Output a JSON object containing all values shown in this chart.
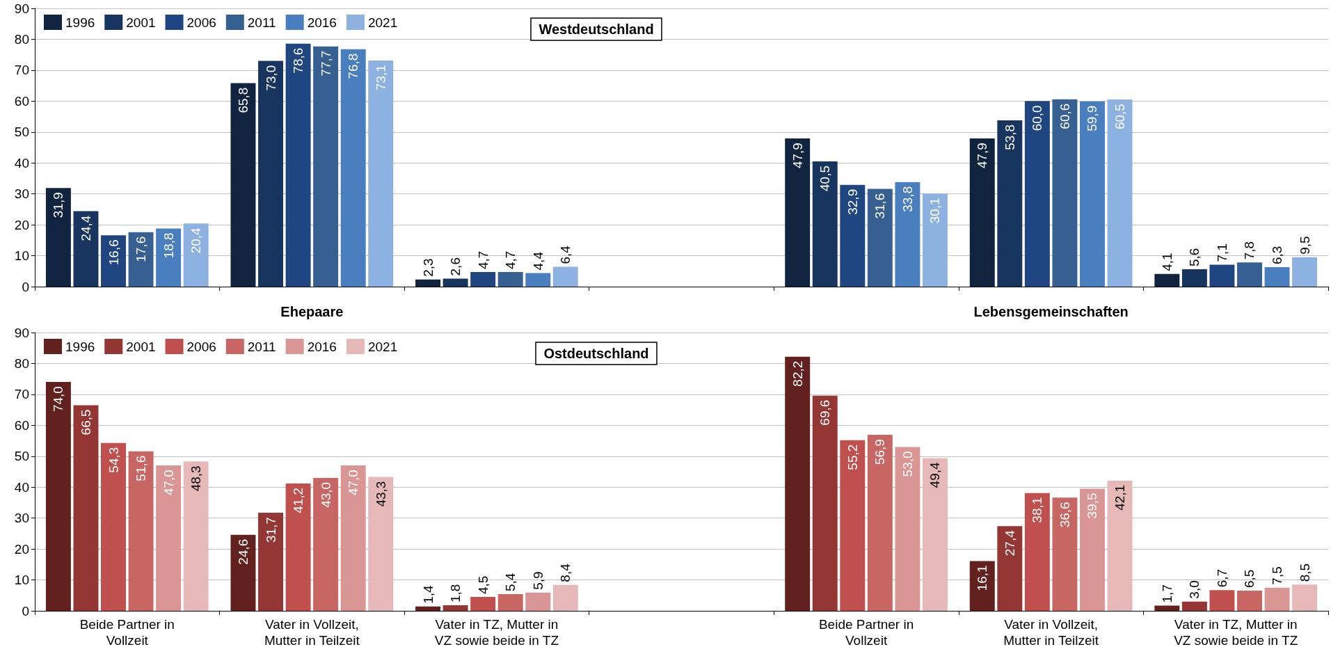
{
  "chart_data": [
    {
      "type": "bar",
      "title": "Westdeutschland",
      "categories": [
        null,
        null,
        null,
        null,
        null,
        null,
        null
      ],
      "series": [
        {
          "name": "1996",
          "color": "#10233f",
          "values": [
            31.9,
            65.8,
            2.3,
            null,
            47.9,
            47.9,
            4.1
          ],
          "value_labels": [
            "31,9",
            "65,8",
            "2,3",
            null,
            "47,9",
            "47,9",
            "4,1"
          ]
        },
        {
          "name": "2001",
          "color": "#17355f",
          "values": [
            24.4,
            73.0,
            2.6,
            null,
            40.5,
            53.8,
            5.6
          ],
          "value_labels": [
            "24,4",
            "73,0",
            "2,6",
            null,
            "40,5",
            "53,8",
            "5,6"
          ]
        },
        {
          "name": "2006",
          "color": "#1f4680",
          "values": [
            16.6,
            78.6,
            4.7,
            null,
            32.9,
            60.0,
            7.1
          ],
          "value_labels": [
            "16,6",
            "78,6",
            "4,7",
            null,
            "32,9",
            "60,0",
            "7,1"
          ]
        },
        {
          "name": "2011",
          "color": "#365f92",
          "values": [
            17.6,
            77.7,
            4.7,
            null,
            31.6,
            60.6,
            7.8
          ],
          "value_labels": [
            "17,6",
            "77,7",
            "4,7",
            null,
            "31,6",
            "60,6",
            "7,8"
          ]
        },
        {
          "name": "2016",
          "color": "#4a7fbf",
          "values": [
            18.8,
            76.8,
            4.4,
            null,
            33.8,
            59.9,
            6.3
          ],
          "value_labels": [
            "18,8",
            "76,8",
            "4,4",
            null,
            "33,8",
            "59,9",
            "6,3"
          ]
        },
        {
          "name": "2021",
          "color": "#8db2e2",
          "values": [
            20.4,
            73.1,
            6.4,
            null,
            30.1,
            60.5,
            9.5
          ],
          "value_labels": [
            "20,4",
            "73,1",
            "6,4",
            null,
            "30,1",
            "60,5",
            "9,5"
          ]
        }
      ],
      "ylim": [
        0,
        90
      ],
      "yticks": [
        0,
        10,
        20,
        30,
        40,
        50,
        60,
        70,
        80,
        90
      ],
      "grid": "y",
      "legend": "top left",
      "annotations": [
        "Ehepaare",
        "Lebensgemeinschaften"
      ]
    },
    {
      "type": "bar",
      "title": "Ostdeutschland",
      "categories": [
        "Beide Partner in Vollzeit",
        "Vater in Vollzeit, Mutter in Teilzeit",
        "Vater in TZ, Mutter in VZ sowie beide in TZ",
        null,
        "Beide Partner in Vollzeit",
        "Vater in Vollzeit, Mutter in Teilzeit",
        "Vater in TZ, Mutter in VZ sowie beide in TZ"
      ],
      "series": [
        {
          "name": "1996",
          "color": "#62211f",
          "values": [
            74.0,
            24.6,
            1.4,
            null,
            82.2,
            16.1,
            1.7
          ],
          "value_labels": [
            "74,0",
            "24,6",
            "1,4",
            null,
            "82,2",
            "16,1",
            "1,7"
          ]
        },
        {
          "name": "2001",
          "color": "#943634",
          "values": [
            66.5,
            31.7,
            1.8,
            null,
            69.6,
            27.4,
            3.0
          ],
          "value_labels": [
            "66,5",
            "31,7",
            "1,8",
            null,
            "69,6",
            "27,4",
            "3,0"
          ]
        },
        {
          "name": "2006",
          "color": "#c0504d",
          "values": [
            54.3,
            41.2,
            4.5,
            null,
            55.2,
            38.1,
            6.7
          ],
          "value_labels": [
            "54,3",
            "41,2",
            "4,5",
            null,
            "55,2",
            "38,1",
            "6,7"
          ]
        },
        {
          "name": "2011",
          "color": "#c86663",
          "values": [
            51.6,
            43.0,
            5.4,
            null,
            56.9,
            36.6,
            6.5
          ],
          "value_labels": [
            "51,6",
            "43,0",
            "5,4",
            null,
            "56,9",
            "36,6",
            "6,5"
          ]
        },
        {
          "name": "2016",
          "color": "#d99694",
          "values": [
            47.0,
            47.0,
            5.9,
            null,
            53.0,
            39.5,
            7.5
          ],
          "value_labels": [
            "47,0",
            "47,0",
            "5,9",
            null,
            "53,0",
            "39,5",
            "7,5"
          ]
        },
        {
          "name": "2021",
          "color": "#e6b9b8",
          "values": [
            48.3,
            43.3,
            8.4,
            null,
            49.4,
            42.1,
            8.5
          ],
          "value_labels": [
            "48,3",
            "43,3",
            "8,4",
            null,
            "49,4",
            "42,1",
            "8,5"
          ]
        }
      ],
      "ylim": [
        0,
        90
      ],
      "yticks": [
        0,
        10,
        20,
        30,
        40,
        50,
        60,
        70,
        80,
        90
      ],
      "grid": "y",
      "legend": "top left"
    }
  ]
}
